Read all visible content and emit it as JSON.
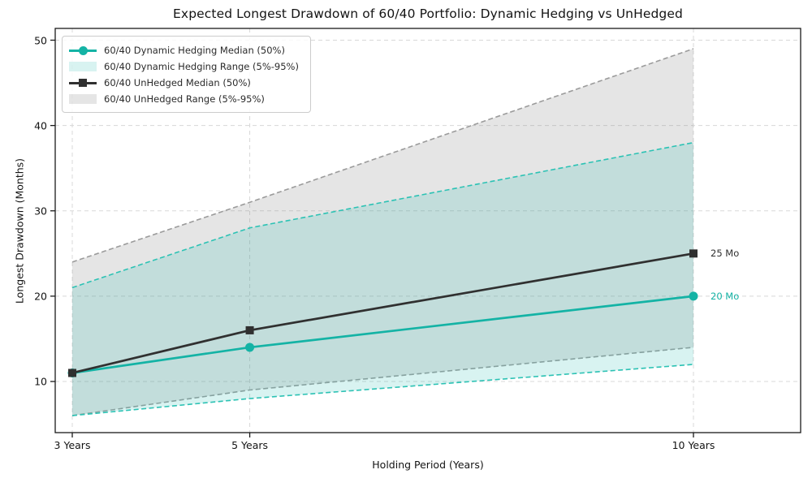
{
  "chart_data": {
    "type": "line",
    "title": "Expected Longest Drawdown of 60/40 Portfolio: Dynamic Hedging vs UnHedged",
    "xlabel": "Holding Period (Years)",
    "ylabel": "Longest Drawdown (Months)",
    "x": [
      3,
      5,
      10
    ],
    "x_tick_labels": [
      "3 Years",
      "5 Years",
      "10 Years"
    ],
    "y_ticks": [
      10,
      20,
      30,
      40,
      50
    ],
    "xlim": [
      2.81,
      11.21
    ],
    "ylim": [
      4.0,
      51.3
    ],
    "grid": true,
    "legend_position": "upper-left",
    "series": [
      {
        "name": "60/40 Dynamic Hedging Median (50%)",
        "kind": "line",
        "marker": "circle",
        "color": "#14b3a5",
        "values": [
          11,
          14,
          20
        ]
      },
      {
        "name": "60/40 Dynamic Hedging Range (5%-95%)",
        "kind": "band",
        "edge_color": "#2cc2b4",
        "fill": "rgba(40,190,178,0.18)",
        "lower": [
          6,
          8,
          12
        ],
        "upper": [
          21,
          28,
          38
        ]
      },
      {
        "name": "60/40 UnHedged Median (50%)",
        "kind": "line",
        "marker": "square",
        "color": "#303030",
        "values": [
          11,
          16,
          25
        ]
      },
      {
        "name": "60/40 UnHedged Range (5%-95%)",
        "kind": "band",
        "edge_color": "#9b9b9b",
        "fill": "rgba(125,125,125,0.20)",
        "lower": [
          6,
          9,
          14
        ],
        "upper": [
          24,
          31,
          49
        ]
      }
    ],
    "annotations": [
      {
        "text": "25 Mo",
        "x": 10,
        "y": 25,
        "color": "#303030"
      },
      {
        "text": "20 Mo",
        "x": 10,
        "y": 20,
        "color": "#14b3a5"
      }
    ],
    "colors": {
      "grid": "#d8d8d8",
      "spine": "#1a1a1a",
      "background": "#ffffff"
    }
  }
}
